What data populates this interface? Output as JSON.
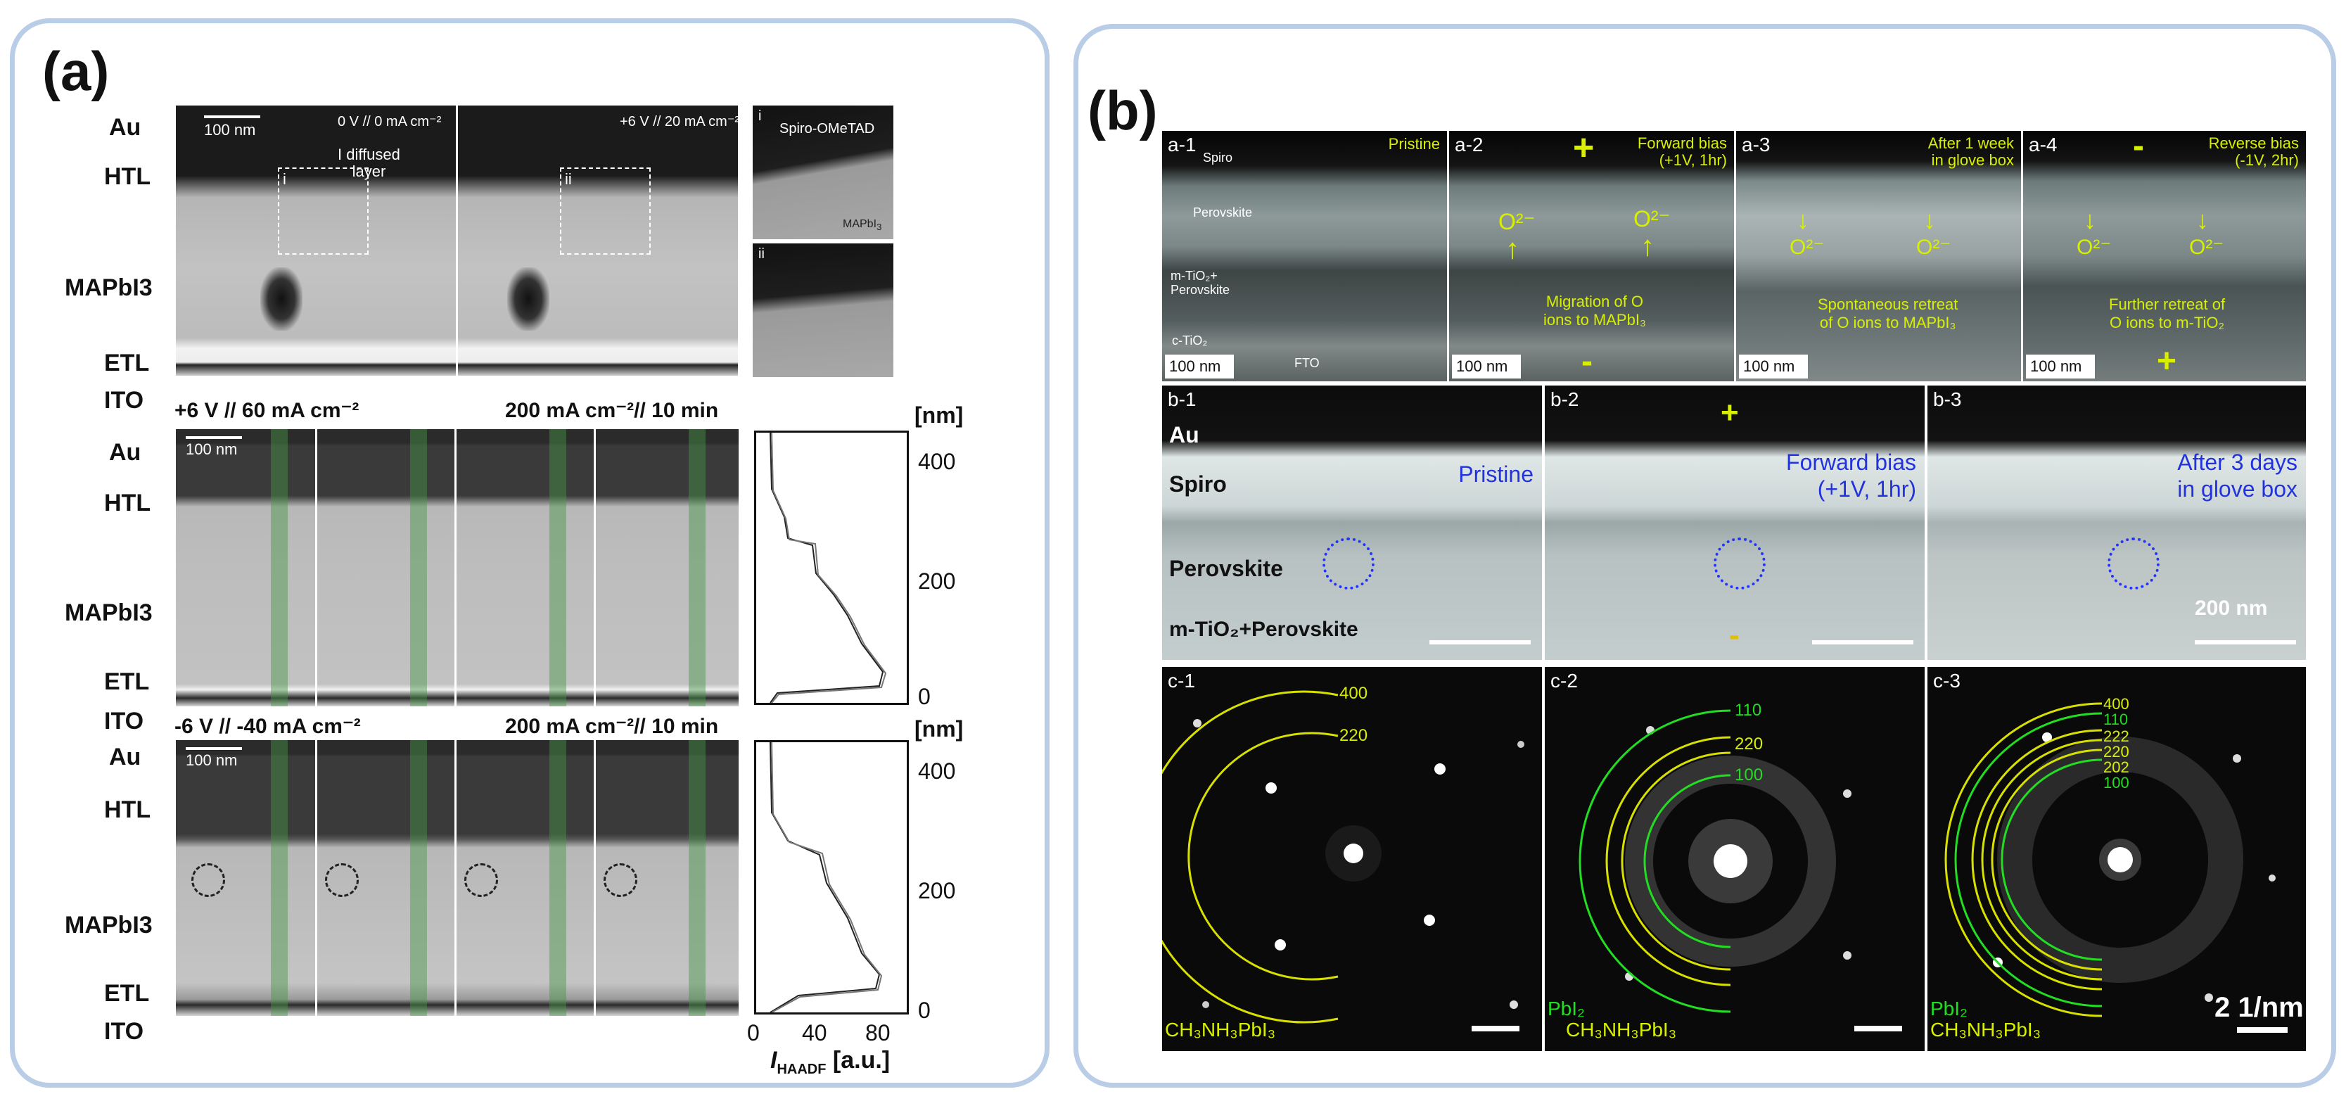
{
  "panel_a": {
    "letter": "(a)",
    "layers_top": [
      "Au",
      "HTL",
      "MAPbI3",
      "ETL",
      "ITO"
    ],
    "top": {
      "scale": "100 nm",
      "cond_left": "0 V // 0 mA cm⁻²",
      "cond_right": "+6 V // 20 mA cm⁻²",
      "diffused_label_1": "I diffused",
      "diffused_label_2": "layer",
      "region_i": "i",
      "region_ii": "ii",
      "inset_i_label": "i",
      "inset_i_top": "Spiro-OMeTAD",
      "inset_i_bottom": "MAPbI",
      "inset_ii_label": "ii"
    },
    "middle": {
      "cond_left": "+6 V // 60 mA cm⁻²",
      "cond_right": "200 mA cm⁻²// 10 min",
      "scale": "100 nm",
      "layers": [
        "Au",
        "HTL",
        "MAPbI3",
        "ETL",
        "ITO"
      ]
    },
    "bottom": {
      "cond_left": "-6 V // -40 mA cm⁻²",
      "cond_right": "200 mA cm⁻²// 10 min",
      "scale": "100 nm",
      "layers": [
        "Au",
        "HTL",
        "MAPbI3",
        "ETL",
        "ITO"
      ]
    },
    "profile_axis": {
      "unit_top": "[nm]",
      "y_ticks": [
        "400",
        "200",
        "0"
      ],
      "x_ticks": [
        "0",
        "40",
        "80"
      ],
      "x_label_var": "I",
      "x_label_sub": "HAADF",
      "x_label_unit": "[a.u.]"
    }
  },
  "panel_b": {
    "letter": "(b)",
    "row_a": [
      {
        "id": "a-1",
        "caption": "Pristine",
        "extra": [
          "Spiro",
          "Perovskite",
          "m-TiO₂+",
          "Perovskite",
          "c-TiO₂",
          "FTO"
        ],
        "scale": "100 nm"
      },
      {
        "id": "a-2",
        "caption1": "Forward  bias",
        "caption2": "(+1V, 1hr)",
        "sign_top": "+",
        "sign_bottom": "-",
        "ion": "O²⁻",
        "note1": "Migration of O",
        "note2": "ions to MAPbI₃",
        "scale": "100 nm"
      },
      {
        "id": "a-3",
        "caption1": "After 1 week",
        "caption2": "in glove box",
        "ion": "O²⁻",
        "note1": "Spontaneous retreat",
        "note2": "of O ions to MAPbI₃",
        "scale": "100 nm"
      },
      {
        "id": "a-4",
        "caption1": "Reverse bias",
        "caption2": "(-1V, 2hr)",
        "sign_top": "-",
        "sign_bottom": "+",
        "ion": "O²⁻",
        "note1": "Further retreat of",
        "note2": "O ions to m-TiO₂",
        "scale": "100 nm"
      }
    ],
    "row_b": [
      {
        "id": "b-1",
        "caption": "Pristine",
        "layers": [
          "Au",
          "Spiro",
          "Perovskite",
          "m-TiO₂+Perovskite"
        ]
      },
      {
        "id": "b-2",
        "caption1": "Forward bias",
        "caption2": "(+1V, 1hr)",
        "sign_top": "+",
        "sign_bottom": "-"
      },
      {
        "id": "b-3",
        "caption1": "After 3 days",
        "caption2": "in glove box",
        "scale": "200 nm"
      }
    ],
    "row_c": [
      {
        "id": "c-1",
        "rings": [
          "400",
          "220"
        ],
        "phase": "CH₃NH₃PbI₃"
      },
      {
        "id": "c-2",
        "rings": [
          "110",
          "220",
          "100"
        ],
        "phase1": "PbI₂",
        "phase2": "CH₃NH₃PbI₃"
      },
      {
        "id": "c-3",
        "rings": [
          "400",
          "110",
          "222",
          "220",
          "202",
          "100"
        ],
        "phase1": "PbI₂",
        "phase2": "CH₃NH₃PbI₃",
        "scale": "2 1/nm"
      }
    ]
  },
  "colors": {
    "frame": "#b9cde6",
    "yellow": "#d8f000",
    "green": "#22dd22",
    "blue": "#2233dd"
  }
}
